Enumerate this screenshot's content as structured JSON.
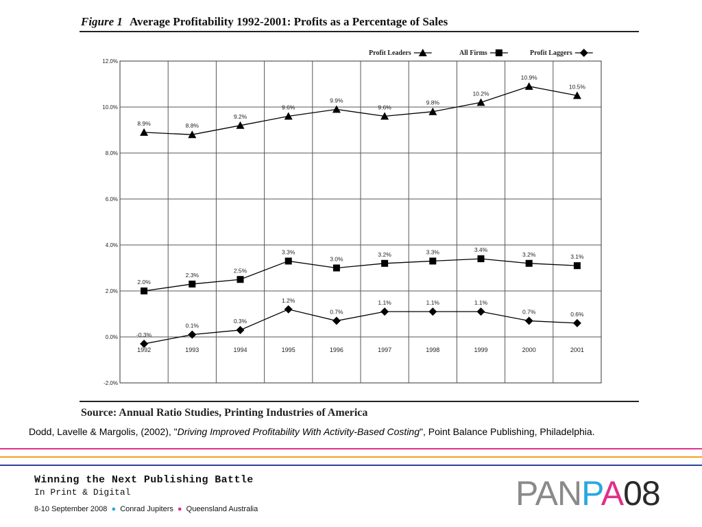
{
  "figure": {
    "label": "Figure 1",
    "title": "Average Profitability 1992-2001: Profits as a Percentage of Sales",
    "source": "Source: Annual Ratio Studies, Printing Industries of America"
  },
  "citation": {
    "before": "Dodd, Lavelle & Margolis, (2002), \"",
    "title": "Driving Improved Profitability With Activity-Based Costing",
    "after": "\", Point Balance Publishing, Philadelphia."
  },
  "footer": {
    "title": "Winning the Next Publishing Battle",
    "subtitle": "In Print & Digital",
    "event_parts": [
      "8-10 September 2008",
      "Conrad Jupiters",
      "Queensland Australia"
    ],
    "dot_colors": [
      "#29a8e0",
      "#e0308a"
    ],
    "stripe_colors": [
      "#e0308a",
      "#f7a11a",
      "#2b3f99"
    ],
    "logo": {
      "parts": [
        {
          "text": "PAN",
          "color": "#8a8a8a"
        },
        {
          "text": "P",
          "color": "#29a8e0"
        },
        {
          "text": "A",
          "color": "#e0308a"
        },
        {
          "text": "08",
          "color": "#2a2a2a"
        }
      ]
    }
  },
  "chart_data": {
    "type": "line",
    "title": "",
    "xlabel": "",
    "ylabel": "",
    "x": [
      "1992",
      "1993",
      "1994",
      "1995",
      "1996",
      "1997",
      "1998",
      "1999",
      "2000",
      "2001"
    ],
    "y_ticks": [
      "12.0%",
      "10.0%",
      "8.0%",
      "6.0%",
      "4.0%",
      "2.0%",
      "0.0%",
      "-2.0%"
    ],
    "ylim": [
      -2,
      12
    ],
    "grid": true,
    "legend_position": "top-right",
    "series": [
      {
        "name": "Profit Leaders",
        "marker": "triangle",
        "values": [
          8.9,
          8.8,
          9.2,
          9.6,
          9.9,
          9.6,
          9.8,
          10.2,
          10.9,
          10.5
        ],
        "labels": [
          "8.9%",
          "8.8%",
          "9.2%",
          "9.6%",
          "9.9%",
          "9.6%",
          "9.8%",
          "10.2%",
          "10.9%",
          "10.5%"
        ]
      },
      {
        "name": "All Firms",
        "marker": "square",
        "values": [
          2.0,
          2.3,
          2.5,
          3.3,
          3.0,
          3.2,
          3.3,
          3.4,
          3.2,
          3.1
        ],
        "labels": [
          "2.0%",
          "2.3%",
          "2.5%",
          "3.3%",
          "3.0%",
          "3.2%",
          "3.3%",
          "3.4%",
          "3.2%",
          "3.1%"
        ]
      },
      {
        "name": "Profit Laggers",
        "marker": "diamond",
        "values": [
          -0.3,
          0.1,
          0.3,
          1.2,
          0.7,
          1.1,
          1.1,
          1.1,
          0.7,
          0.6
        ],
        "labels": [
          "-0.3%",
          "0.1%",
          "0.3%",
          "1.2%",
          "0.7%",
          "1.1%",
          "1.1%",
          "1.1%",
          "0.7%",
          "0.6%"
        ]
      }
    ]
  }
}
